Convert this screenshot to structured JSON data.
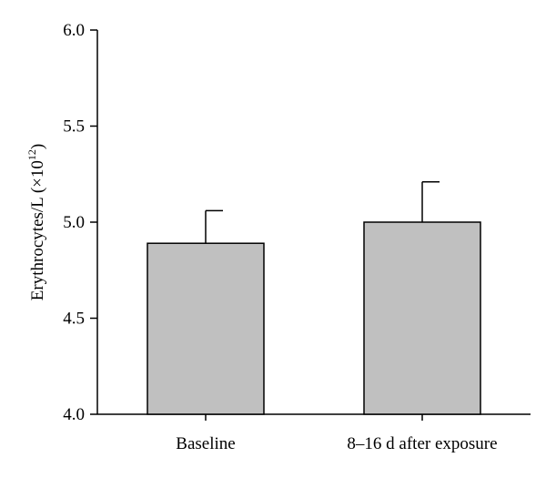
{
  "chart_data": {
    "type": "bar",
    "categories": [
      "Baseline",
      "8–16 d after exposure"
    ],
    "values": [
      4.89,
      5.0
    ],
    "error_upper": [
      5.06,
      5.21
    ],
    "ylim": [
      4.0,
      6.0
    ],
    "yticks": [
      "4.0",
      "4.5",
      "5.0",
      "5.5",
      "6.0"
    ],
    "ytick_values": [
      4.0,
      4.5,
      5.0,
      5.5,
      6.0
    ],
    "ylabel": {
      "main": "Erythrocytes/L (×10",
      "exponent": "12",
      "close": ")"
    },
    "xlabel": "",
    "title": "",
    "grid": false,
    "colors": {
      "bar_fill": "#c0c0c0",
      "bar_stroke": "#000000",
      "axis": "#000000"
    }
  }
}
